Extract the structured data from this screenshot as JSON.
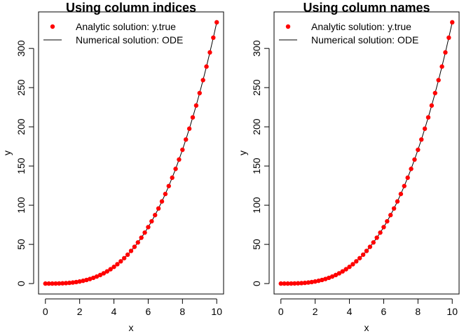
{
  "chart_data": [
    {
      "type": "scatter",
      "title": "Using column indices",
      "xlabel": "x",
      "ylabel": "y",
      "xlim": [
        0,
        10
      ],
      "ylim": [
        0,
        333.33
      ],
      "xticks": [
        0,
        2,
        4,
        6,
        8,
        10
      ],
      "yticks": [
        0,
        50,
        100,
        150,
        200,
        250,
        300
      ],
      "legend_position": "top-left",
      "series": [
        {
          "name": "Analytic solution: y.true",
          "style": "points",
          "color": "#ff0000",
          "formula": "x^3/3",
          "x_start": 0,
          "x_end": 10,
          "x_step": 0.2
        },
        {
          "name": "Numerical solution: ODE",
          "style": "line",
          "color": "#000000",
          "formula": "x^3/3",
          "x_start": 0,
          "x_end": 10,
          "x_step": 0.2
        }
      ]
    },
    {
      "type": "scatter",
      "title": "Using column names",
      "xlabel": "x",
      "ylabel": "y",
      "xlim": [
        0,
        10
      ],
      "ylim": [
        0,
        333.33
      ],
      "xticks": [
        0,
        2,
        4,
        6,
        8,
        10
      ],
      "yticks": [
        0,
        50,
        100,
        150,
        200,
        250,
        300
      ],
      "legend_position": "top-left",
      "series": [
        {
          "name": "Analytic solution: y.true",
          "style": "points",
          "color": "#ff0000",
          "formula": "x^3/3",
          "x_start": 0,
          "x_end": 10,
          "x_step": 0.2
        },
        {
          "name": "Numerical solution: ODE",
          "style": "line",
          "color": "#000000",
          "formula": "x^3/3",
          "x_start": 0,
          "x_end": 10,
          "x_step": 0.2
        }
      ]
    }
  ]
}
